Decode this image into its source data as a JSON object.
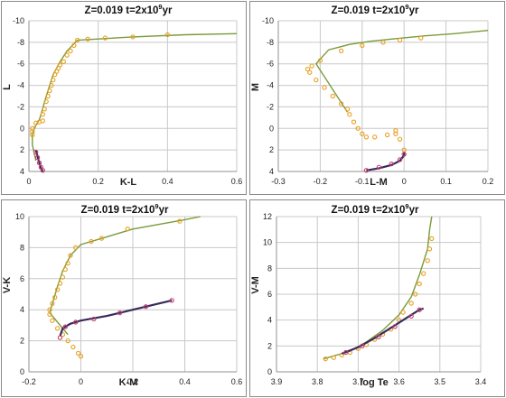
{
  "chart_data": [
    {
      "type": "scatter",
      "title": "Z=0.019   t=2x10",
      "title_sup": "9",
      "title_suffix": "yr",
      "xlabel": "K-L",
      "ylabel": "L",
      "xlim": [
        0,
        0.6
      ],
      "ylim": [
        4,
        -10
      ],
      "xticks": [
        "0",
        "0.2",
        "0.4",
        "0.6"
      ],
      "xtick_values": [
        0,
        0.2,
        0.4,
        0.6
      ],
      "yticks": [
        "4",
        "2",
        "0",
        "-2",
        "-4",
        "-6",
        "-8",
        "-10"
      ],
      "ytick_values": [
        4,
        2,
        0,
        -2,
        -4,
        -6,
        -8,
        -10
      ],
      "grid": true,
      "series": [
        {
          "style": "line",
          "color": "#7a9a3a",
          "points": [
            [
              0.02,
              3.0
            ],
            [
              0.01,
              1.5
            ],
            [
              0.01,
              0.5
            ],
            [
              0.02,
              -0.3
            ],
            [
              0.03,
              -0.8
            ],
            [
              0.035,
              -1.3
            ],
            [
              0.05,
              -3.0
            ],
            [
              0.07,
              -5.0
            ],
            [
              0.09,
              -6.2
            ],
            [
              0.11,
              -7.2
            ],
            [
              0.14,
              -8.2
            ],
            [
              0.3,
              -8.5
            ],
            [
              0.45,
              -8.7
            ],
            [
              0.6,
              -8.8
            ]
          ]
        },
        {
          "style": "markers",
          "color": "#e8a020",
          "points": [
            [
              0.01,
              0.6
            ],
            [
              0.01,
              0.3
            ],
            [
              0.01,
              0.0
            ],
            [
              0.02,
              -0.5
            ],
            [
              0.03,
              -0.6
            ],
            [
              0.04,
              -0.7
            ],
            [
              0.04,
              -1.3
            ],
            [
              0.045,
              -1.8
            ],
            [
              0.05,
              -2.5
            ],
            [
              0.055,
              -3.0
            ],
            [
              0.06,
              -3.5
            ],
            [
              0.065,
              -4.0
            ],
            [
              0.07,
              -4.5
            ],
            [
              0.075,
              -5.0
            ],
            [
              0.08,
              -5.3
            ],
            [
              0.085,
              -5.6
            ],
            [
              0.09,
              -5.9
            ],
            [
              0.1,
              -6.2
            ],
            [
              0.11,
              -6.8
            ],
            [
              0.12,
              -7.2
            ],
            [
              0.13,
              -7.7
            ],
            [
              0.14,
              -8.2
            ],
            [
              0.17,
              -8.3
            ],
            [
              0.22,
              -8.4
            ],
            [
              0.3,
              -8.5
            ],
            [
              0.4,
              -8.7
            ]
          ]
        },
        {
          "style": "line",
          "color": "#3a2a5a",
          "points": [
            [
              0.02,
              2.0
            ],
            [
              0.025,
              2.6
            ],
            [
              0.03,
              3.2
            ],
            [
              0.035,
              3.7
            ],
            [
              0.04,
              4.0
            ]
          ]
        },
        {
          "style": "markers",
          "color": "#c04070",
          "points": [
            [
              0.02,
              2.2
            ],
            [
              0.025,
              2.7
            ],
            [
              0.03,
              3.2
            ],
            [
              0.035,
              3.6
            ],
            [
              0.04,
              3.9
            ]
          ]
        }
      ]
    },
    {
      "type": "scatter",
      "title": "Z=0.019   t=2x10",
      "title_sup": "9",
      "title_suffix": "yr",
      "xlabel": "L-M",
      "ylabel": "M",
      "xlim": [
        -0.3,
        0.2
      ],
      "ylim": [
        4,
        -10
      ],
      "xticks": [
        "-0.3",
        "-0.2",
        "-0.1",
        "0",
        "0.1",
        "0.2"
      ],
      "xtick_values": [
        -0.3,
        -0.2,
        -0.1,
        0,
        0.1,
        0.2
      ],
      "yticks": [
        "4",
        "2",
        "0",
        "-2",
        "-4",
        "-6",
        "-8",
        "-10"
      ],
      "ytick_values": [
        4,
        2,
        0,
        -2,
        -4,
        -6,
        -8,
        -10
      ],
      "grid": true,
      "series": [
        {
          "style": "line",
          "color": "#7a9a3a",
          "points": [
            [
              -0.135,
              -1.5
            ],
            [
              -0.21,
              -6.0
            ],
            [
              -0.18,
              -7.3
            ],
            [
              -0.13,
              -7.8
            ],
            [
              -0.08,
              -8.1
            ],
            [
              -0.03,
              -8.3
            ],
            [
              0.05,
              -8.6
            ],
            [
              0.12,
              -8.8
            ],
            [
              0.2,
              -9.1
            ]
          ]
        },
        {
          "style": "markers",
          "color": "#e8a020",
          "points": [
            [
              0.0,
              2.0
            ],
            [
              -0.01,
              1.0
            ],
            [
              -0.02,
              0.5
            ],
            [
              -0.02,
              0.2
            ],
            [
              -0.04,
              0.6
            ],
            [
              -0.07,
              0.8
            ],
            [
              -0.09,
              0.8
            ],
            [
              -0.1,
              0.5
            ],
            [
              -0.11,
              0.0
            ],
            [
              -0.12,
              -0.6
            ],
            [
              -0.13,
              -1.3
            ],
            [
              -0.135,
              -1.8
            ],
            [
              -0.15,
              -2.3
            ],
            [
              -0.17,
              -3.0
            ],
            [
              -0.19,
              -3.8
            ],
            [
              -0.21,
              -4.5
            ],
            [
              -0.225,
              -5.2
            ],
            [
              -0.23,
              -5.5
            ],
            [
              -0.22,
              -5.8
            ],
            [
              -0.2,
              -6.3
            ],
            [
              -0.15,
              -7.2
            ],
            [
              -0.1,
              -7.7
            ],
            [
              -0.05,
              -8.0
            ],
            [
              -0.01,
              -8.2
            ],
            [
              0.04,
              -8.4
            ]
          ]
        },
        {
          "style": "line",
          "color": "#3a2a5a",
          "points": [
            [
              -0.09,
              3.9
            ],
            [
              -0.06,
              3.7
            ],
            [
              -0.03,
              3.4
            ],
            [
              -0.01,
              3.0
            ],
            [
              0.0,
              2.5
            ],
            [
              0.0,
              2.2
            ]
          ]
        },
        {
          "style": "markers",
          "color": "#c04070",
          "points": [
            [
              -0.09,
              3.9
            ],
            [
              -0.06,
              3.6
            ],
            [
              -0.03,
              3.3
            ],
            [
              -0.01,
              2.9
            ],
            [
              0.0,
              2.4
            ]
          ]
        }
      ]
    },
    {
      "type": "scatter",
      "title": "Z=0.019   t=2x10",
      "title_sup": "9",
      "title_suffix": "yr",
      "xlabel": "K-M",
      "ylabel": "V-K",
      "xlim": [
        -0.2,
        0.6
      ],
      "ylim": [
        0,
        10
      ],
      "xticks": [
        "-0.2",
        "0",
        "0.2",
        "0.4",
        "0.6"
      ],
      "xtick_values": [
        -0.2,
        0,
        0.2,
        0.4,
        0.6
      ],
      "yticks": [
        "0",
        "2",
        "4",
        "6",
        "8",
        "10"
      ],
      "ytick_values": [
        0,
        2,
        4,
        6,
        8,
        10
      ],
      "grid": true,
      "series": [
        {
          "style": "line",
          "color": "#7a9a3a",
          "points": [
            [
              -0.05,
              2.4
            ],
            [
              -0.12,
              3.8
            ],
            [
              -0.09,
              5.5
            ],
            [
              -0.07,
              6.5
            ],
            [
              -0.04,
              7.5
            ],
            [
              0.0,
              8.2
            ],
            [
              0.1,
              8.7
            ],
            [
              0.2,
              9.2
            ],
            [
              0.4,
              9.8
            ],
            [
              0.46,
              10.0
            ]
          ]
        },
        {
          "style": "markers",
          "color": "#e8a020",
          "points": [
            [
              0.0,
              1.0
            ],
            [
              -0.01,
              1.2
            ],
            [
              -0.03,
              1.6
            ],
            [
              -0.05,
              2.0
            ],
            [
              -0.07,
              2.4
            ],
            [
              -0.09,
              2.8
            ],
            [
              -0.11,
              3.3
            ],
            [
              -0.12,
              3.7
            ],
            [
              -0.12,
              4.0
            ],
            [
              -0.11,
              4.4
            ],
            [
              -0.1,
              4.8
            ],
            [
              -0.09,
              5.3
            ],
            [
              -0.08,
              5.7
            ],
            [
              -0.07,
              6.1
            ],
            [
              -0.06,
              6.6
            ],
            [
              -0.05,
              7.0
            ],
            [
              -0.04,
              7.5
            ],
            [
              -0.02,
              8.0
            ],
            [
              0.04,
              8.4
            ],
            [
              0.08,
              8.6
            ],
            [
              0.18,
              9.2
            ],
            [
              0.38,
              9.7
            ]
          ]
        },
        {
          "style": "line",
          "color": "#3a2a5a",
          "points": [
            [
              -0.08,
              2.3
            ],
            [
              -0.07,
              2.8
            ],
            [
              -0.04,
              3.1
            ],
            [
              0.0,
              3.3
            ],
            [
              0.1,
              3.6
            ],
            [
              0.2,
              4.0
            ],
            [
              0.3,
              4.4
            ],
            [
              0.35,
              4.6
            ]
          ]
        },
        {
          "style": "markers",
          "color": "#c04070",
          "points": [
            [
              -0.08,
              2.2
            ],
            [
              -0.06,
              2.9
            ],
            [
              -0.02,
              3.2
            ],
            [
              0.05,
              3.4
            ],
            [
              0.15,
              3.8
            ],
            [
              0.25,
              4.2
            ],
            [
              0.35,
              4.6
            ]
          ]
        }
      ]
    },
    {
      "type": "scatter",
      "title": "Z=0.019   t=2x10",
      "title_sup": "9",
      "title_suffix": "yr",
      "xlabel": "log Te",
      "ylabel": "V-M",
      "xlim": [
        3.9,
        3.4
      ],
      "ylim": [
        0,
        12
      ],
      "xticks": [
        "3.9",
        "3.8",
        "3.7",
        "3.6",
        "3.5",
        "3.4"
      ],
      "xtick_values": [
        3.9,
        3.8,
        3.7,
        3.6,
        3.5,
        3.4
      ],
      "yticks": [
        "0",
        "2",
        "4",
        "6",
        "8",
        "10",
        "12"
      ],
      "ytick_values": [
        0,
        2,
        4,
        6,
        8,
        10,
        12
      ],
      "grid": true,
      "series": [
        {
          "style": "line",
          "color": "#7a9a3a",
          "points": [
            [
              3.785,
              1.0
            ],
            [
              3.72,
              1.6
            ],
            [
              3.68,
              2.3
            ],
            [
              3.64,
              3.2
            ],
            [
              3.6,
              4.4
            ],
            [
              3.57,
              5.8
            ],
            [
              3.55,
              7.5
            ],
            [
              3.53,
              9.5
            ],
            [
              3.525,
              11.0
            ],
            [
              3.52,
              12.0
            ]
          ]
        },
        {
          "style": "markers",
          "color": "#e8a020",
          "points": [
            [
              3.78,
              1.0
            ],
            [
              3.76,
              1.1
            ],
            [
              3.74,
              1.3
            ],
            [
              3.72,
              1.5
            ],
            [
              3.7,
              1.8
            ],
            [
              3.68,
              2.1
            ],
            [
              3.66,
              2.5
            ],
            [
              3.64,
              2.9
            ],
            [
              3.62,
              3.3
            ],
            [
              3.6,
              4.0
            ],
            [
              3.59,
              4.6
            ],
            [
              3.57,
              5.3
            ],
            [
              3.56,
              6.0
            ],
            [
              3.55,
              6.8
            ],
            [
              3.54,
              7.6
            ],
            [
              3.53,
              8.6
            ],
            [
              3.525,
              9.5
            ],
            [
              3.52,
              10.3
            ]
          ]
        },
        {
          "style": "line",
          "color": "#3a2a5a",
          "points": [
            [
              3.74,
              1.4
            ],
            [
              3.7,
              1.9
            ],
            [
              3.66,
              2.6
            ],
            [
              3.62,
              3.4
            ],
            [
              3.58,
              4.2
            ],
            [
              3.55,
              4.8
            ],
            [
              3.54,
              4.9
            ]
          ]
        },
        {
          "style": "markers",
          "color": "#c04070",
          "points": [
            [
              3.73,
              1.5
            ],
            [
              3.69,
              2.0
            ],
            [
              3.65,
              2.7
            ],
            [
              3.61,
              3.5
            ],
            [
              3.57,
              4.3
            ],
            [
              3.55,
              4.8
            ]
          ]
        }
      ]
    }
  ]
}
